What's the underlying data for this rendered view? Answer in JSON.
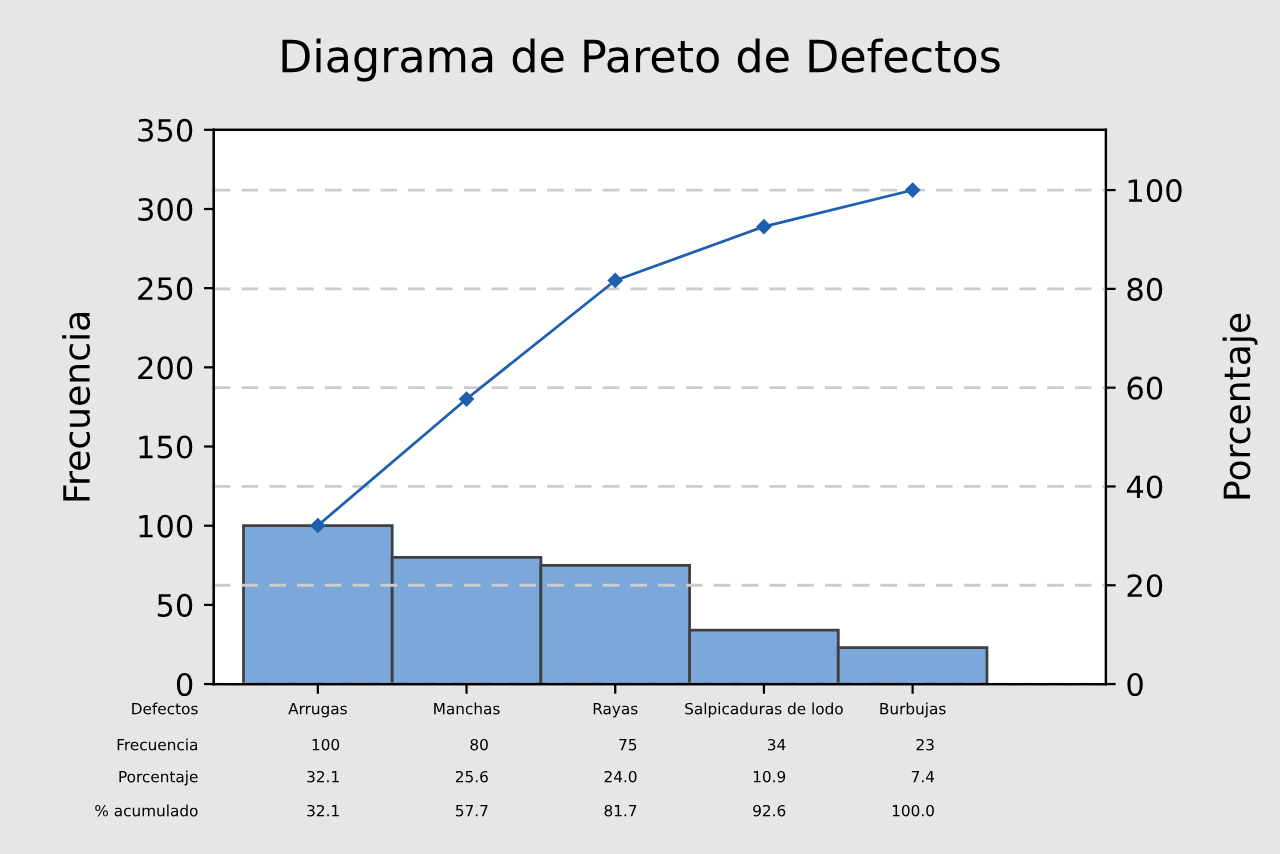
{
  "chart_data": {
    "type": "bar",
    "title": "Diagrama de Pareto de Defectos",
    "xlabel": "Defectos",
    "ylabel": "Frecuencia",
    "y2label": "Porcentaje",
    "categories": [
      "Arrugas",
      "Manchas",
      "Rayas",
      "Salpicaduras de lodo",
      "Burbujas"
    ],
    "series": [
      {
        "color": "#7ba7da",
        "values": [
          100,
          80,
          75,
          34,
          23
        ]
      },
      {
        "type": "line",
        "axis": "y2",
        "color": "#1f5faf",
        "values": [
          32.1,
          57.7,
          81.7,
          92.6,
          100.0
        ],
        "value_labels": [
          "32.1",
          "57.7",
          "81.7",
          "92.6",
          "100.0"
        ]
      }
    ],
    "ylim": [
      0,
      350
    ],
    "yticks": [
      0,
      50,
      100,
      150,
      200,
      250,
      300,
      350
    ],
    "y2lim": [
      0,
      112.2
    ],
    "y2ticks": [
      0,
      20,
      40,
      60,
      80,
      100
    ],
    "annotations": [
      "Frecuencia",
      "Porcentaje",
      "32.1",
      "25.6",
      "24.0",
      "10.9",
      "7.4",
      "% acumulado"
    ],
    "grid": "y",
    "marker": "diamond",
    "data_labels": true
  }
}
